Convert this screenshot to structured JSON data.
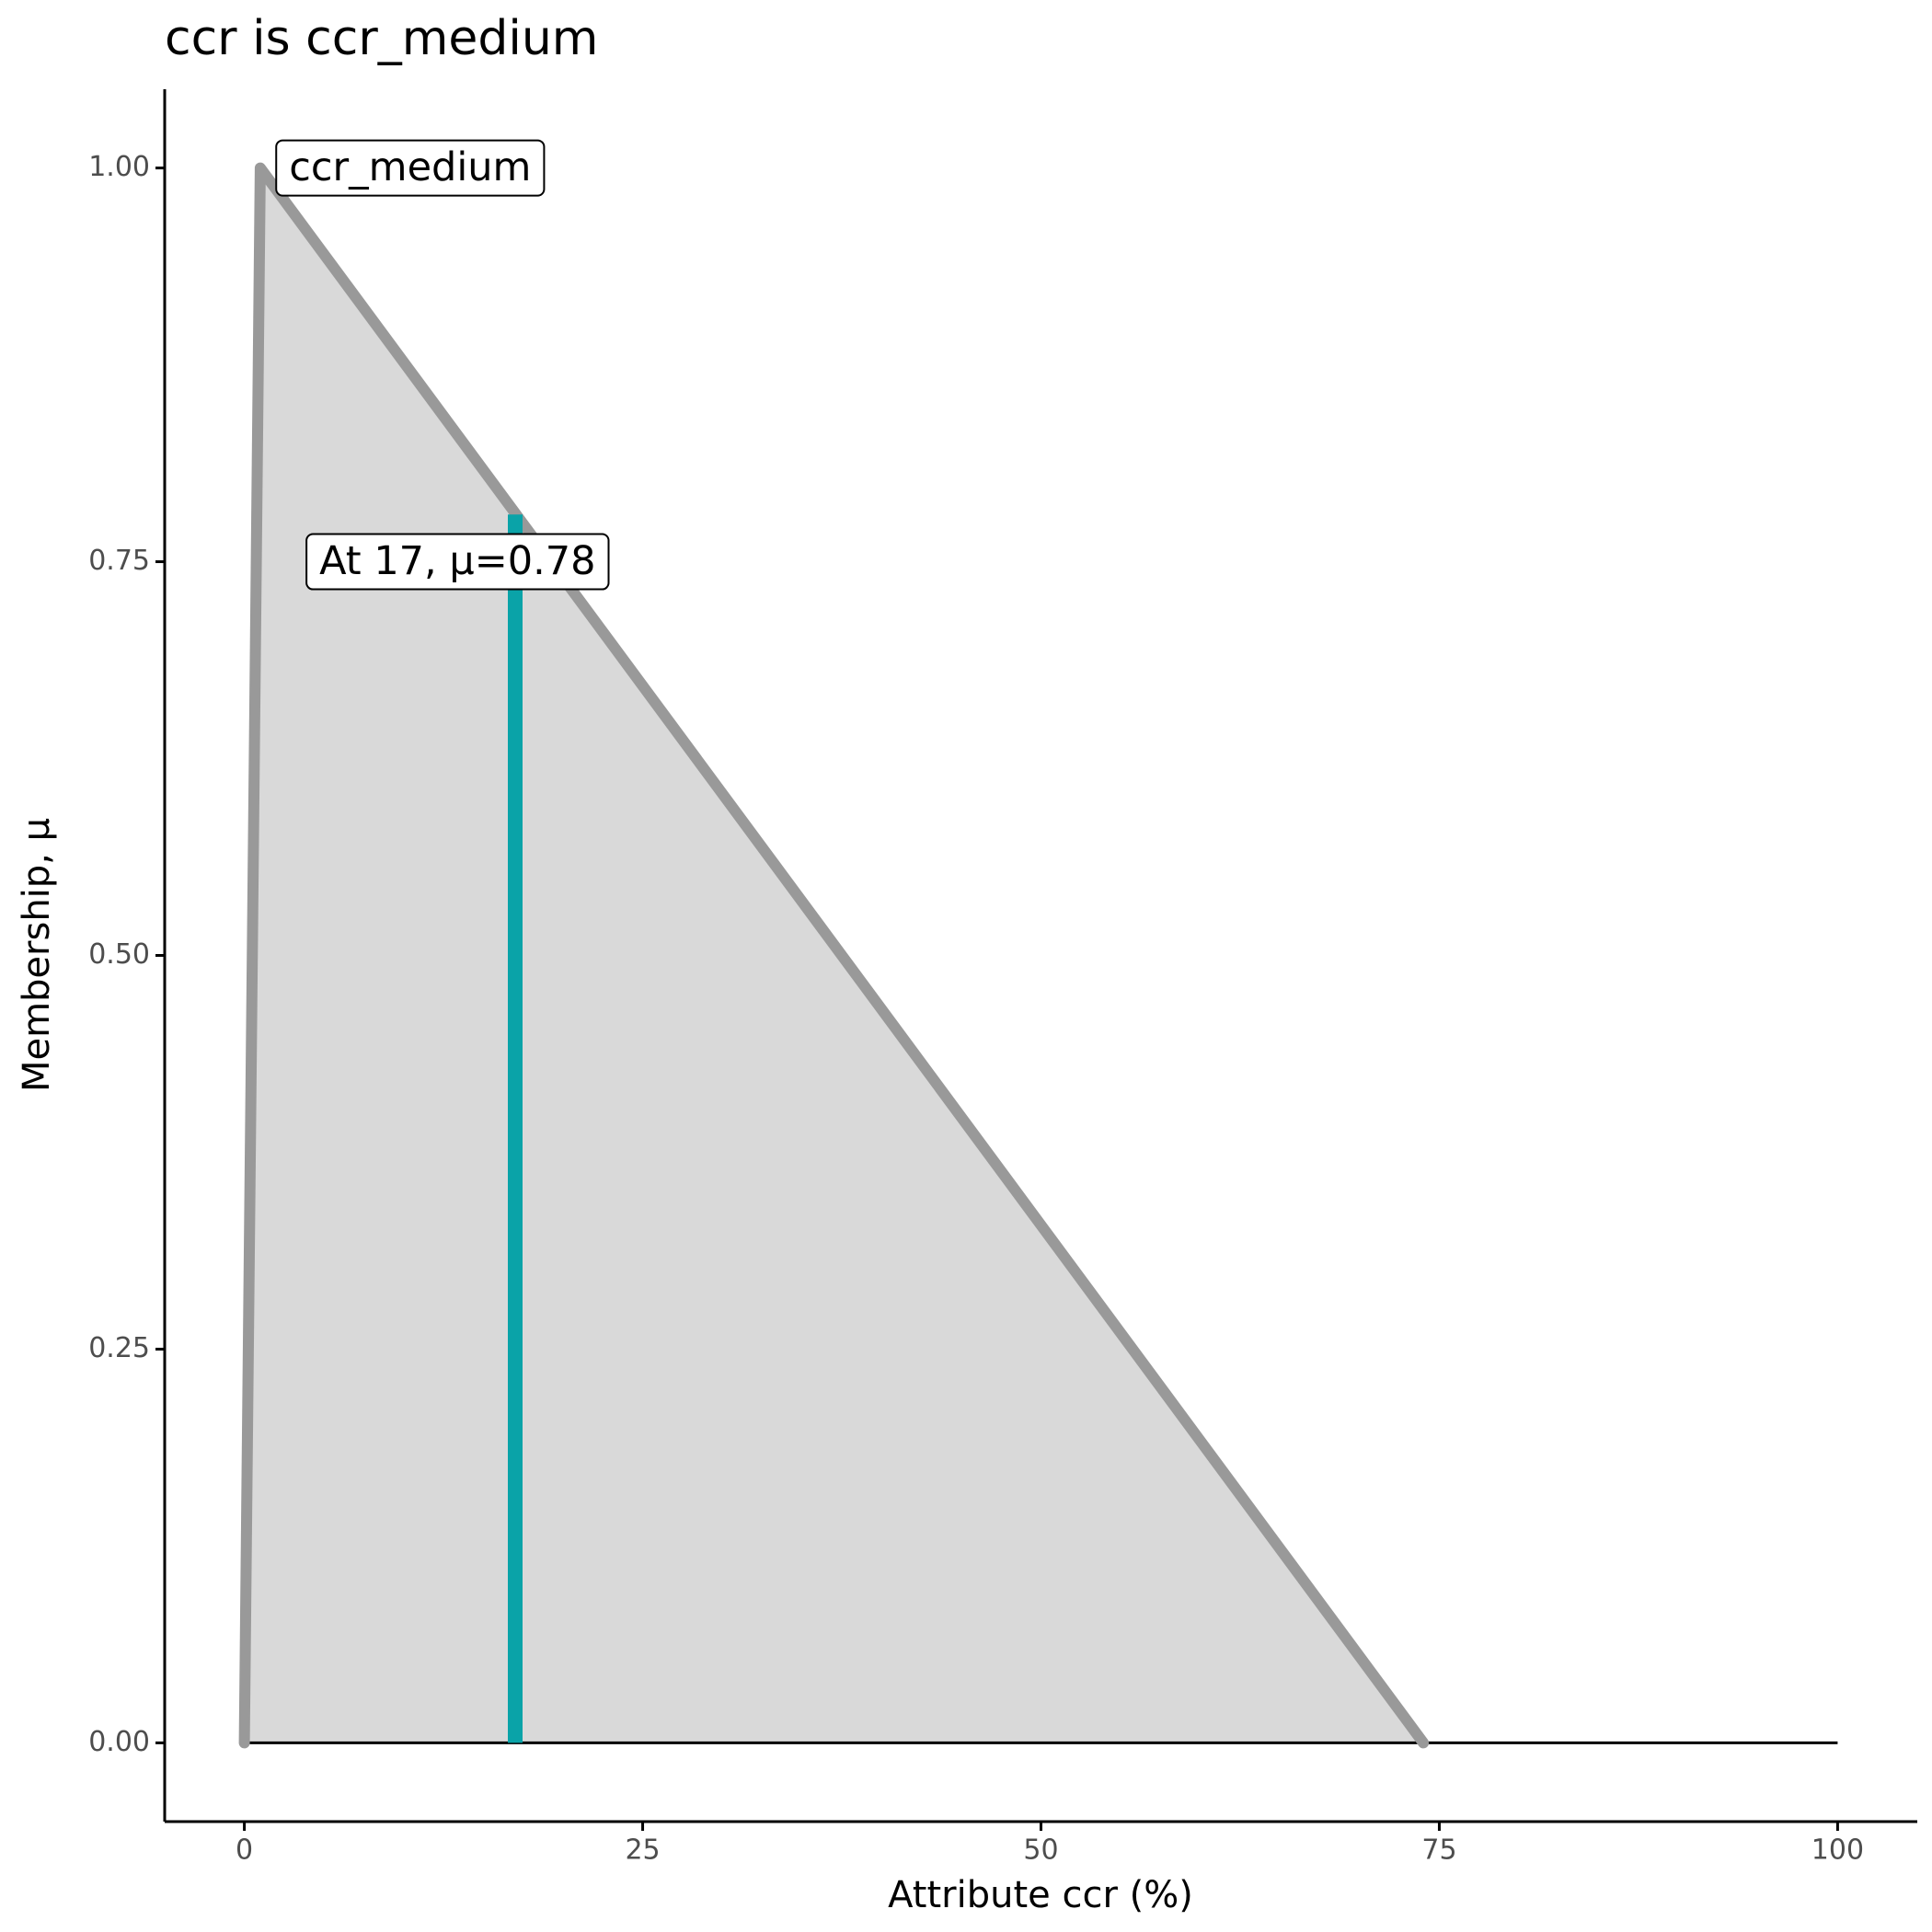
{
  "chart_data": {
    "type": "area",
    "title": "ccr is ccr_medium",
    "x_label": "Attribute ccr (%)",
    "y_label": "Membership, μ",
    "x": [
      0,
      1,
      74
    ],
    "values": [
      0,
      1,
      0
    ],
    "color": "#999999",
    "fill": "#d9d9d9",
    "xlim": [
      -5,
      105
    ],
    "ylim": [
      -0.05,
      1.05
    ],
    "xticks": [
      0,
      25,
      50,
      75,
      100
    ],
    "yticks": [
      {
        "value": 0,
        "label": "0.00"
      },
      0.25,
      {
        "value": 0.5,
        "label": "0.50"
      },
      0.75,
      {
        "value": 1,
        "label": "1.00"
      }
    ],
    "baseline": {
      "x": [
        0,
        100
      ],
      "y": 0
    },
    "marker": {
      "x": 17,
      "value": 0.78,
      "color": "#0aa3a8"
    },
    "annotations": [
      {
        "text": "ccr_medium",
        "x": 2,
        "y": 1
      },
      {
        "text": "At 17, μ=0.78",
        "x": 3.9,
        "y": 0.75
      }
    ]
  }
}
